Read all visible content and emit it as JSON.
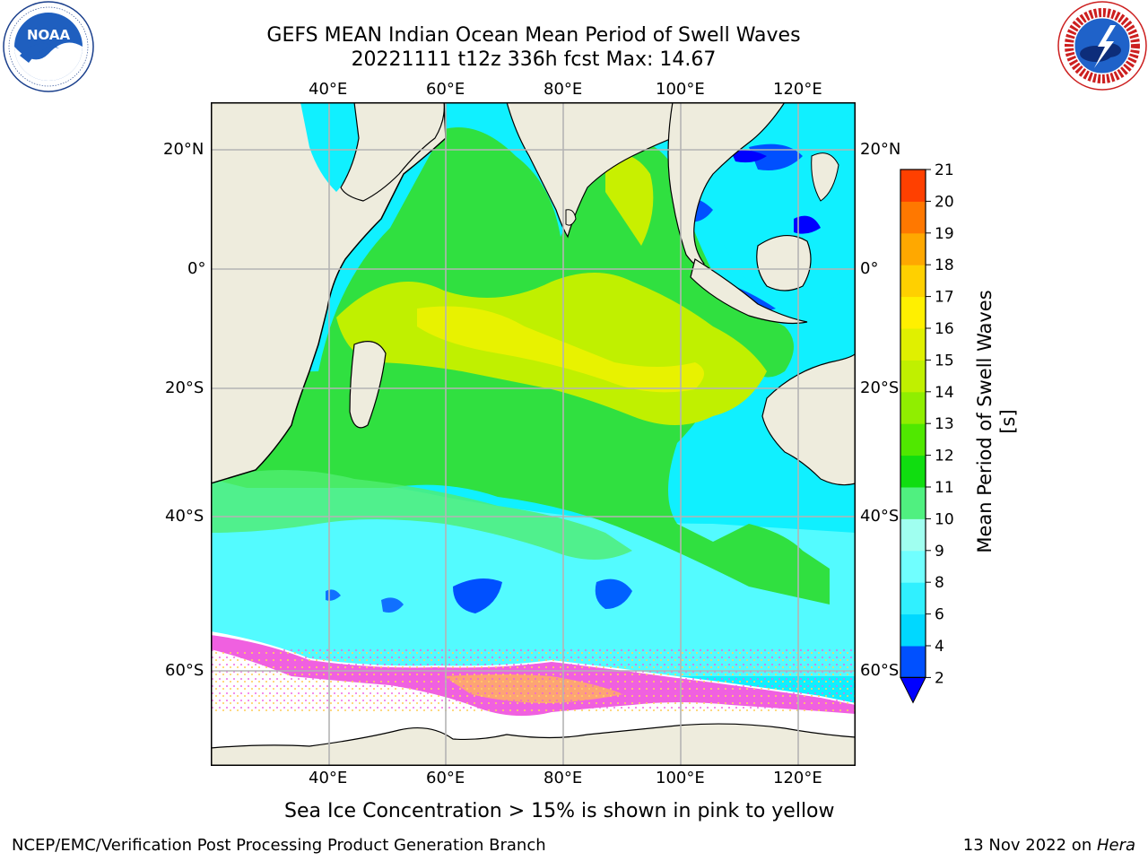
{
  "header": {
    "title_line1": "GEFS MEAN Indian Ocean Mean Period of Swell Waves",
    "title_line2": "20221111 t12z 336h fcst   Max: 14.67"
  },
  "logos": {
    "left": {
      "icon": "noaa-logo",
      "text": "NOAA",
      "ring_text": "NATIONAL OCEANIC AND ATMOSPHERIC ADMINISTRATION · U.S. DEPARTMENT OF COMMERCE"
    },
    "right": {
      "icon": "nws-logo",
      "ring_text": "NATIONAL WEATHER SERVICE"
    }
  },
  "map": {
    "lon_labels": [
      "40°E",
      "60°E",
      "80°E",
      "100°E",
      "120°E"
    ],
    "lat_labels": [
      "20°N",
      "0°",
      "20°S",
      "40°S",
      "60°S"
    ],
    "land_color": "#eeecdd",
    "gridline_color": "#b4b4b4"
  },
  "colorbar": {
    "label": "Mean Period of Swell Waves [s]",
    "ticks": [
      "2",
      "4",
      "6",
      "8",
      "9",
      "10",
      "11",
      "12",
      "13",
      "14",
      "15",
      "16",
      "17",
      "18",
      "19",
      "20",
      "21"
    ],
    "colors": [
      "#0050ff",
      "#00d8ff",
      "#30f0ff",
      "#70ffff",
      "#a0fff0",
      "#50f080",
      "#10dd10",
      "#50e800",
      "#90ee00",
      "#c0f000",
      "#e0f000",
      "#fff000",
      "#ffd000",
      "#ffa800",
      "#ff7800",
      "#ff4000",
      "#ff0000"
    ],
    "under_color": "#0000ff"
  },
  "caption": "Sea Ice Concentration > 15% is shown in pink to yellow",
  "footer": {
    "left": "NCEP/EMC/Verification Post Processing Product Generation Branch",
    "right_prefix": "13 Nov 2022 on ",
    "right_machine": "Hera"
  }
}
